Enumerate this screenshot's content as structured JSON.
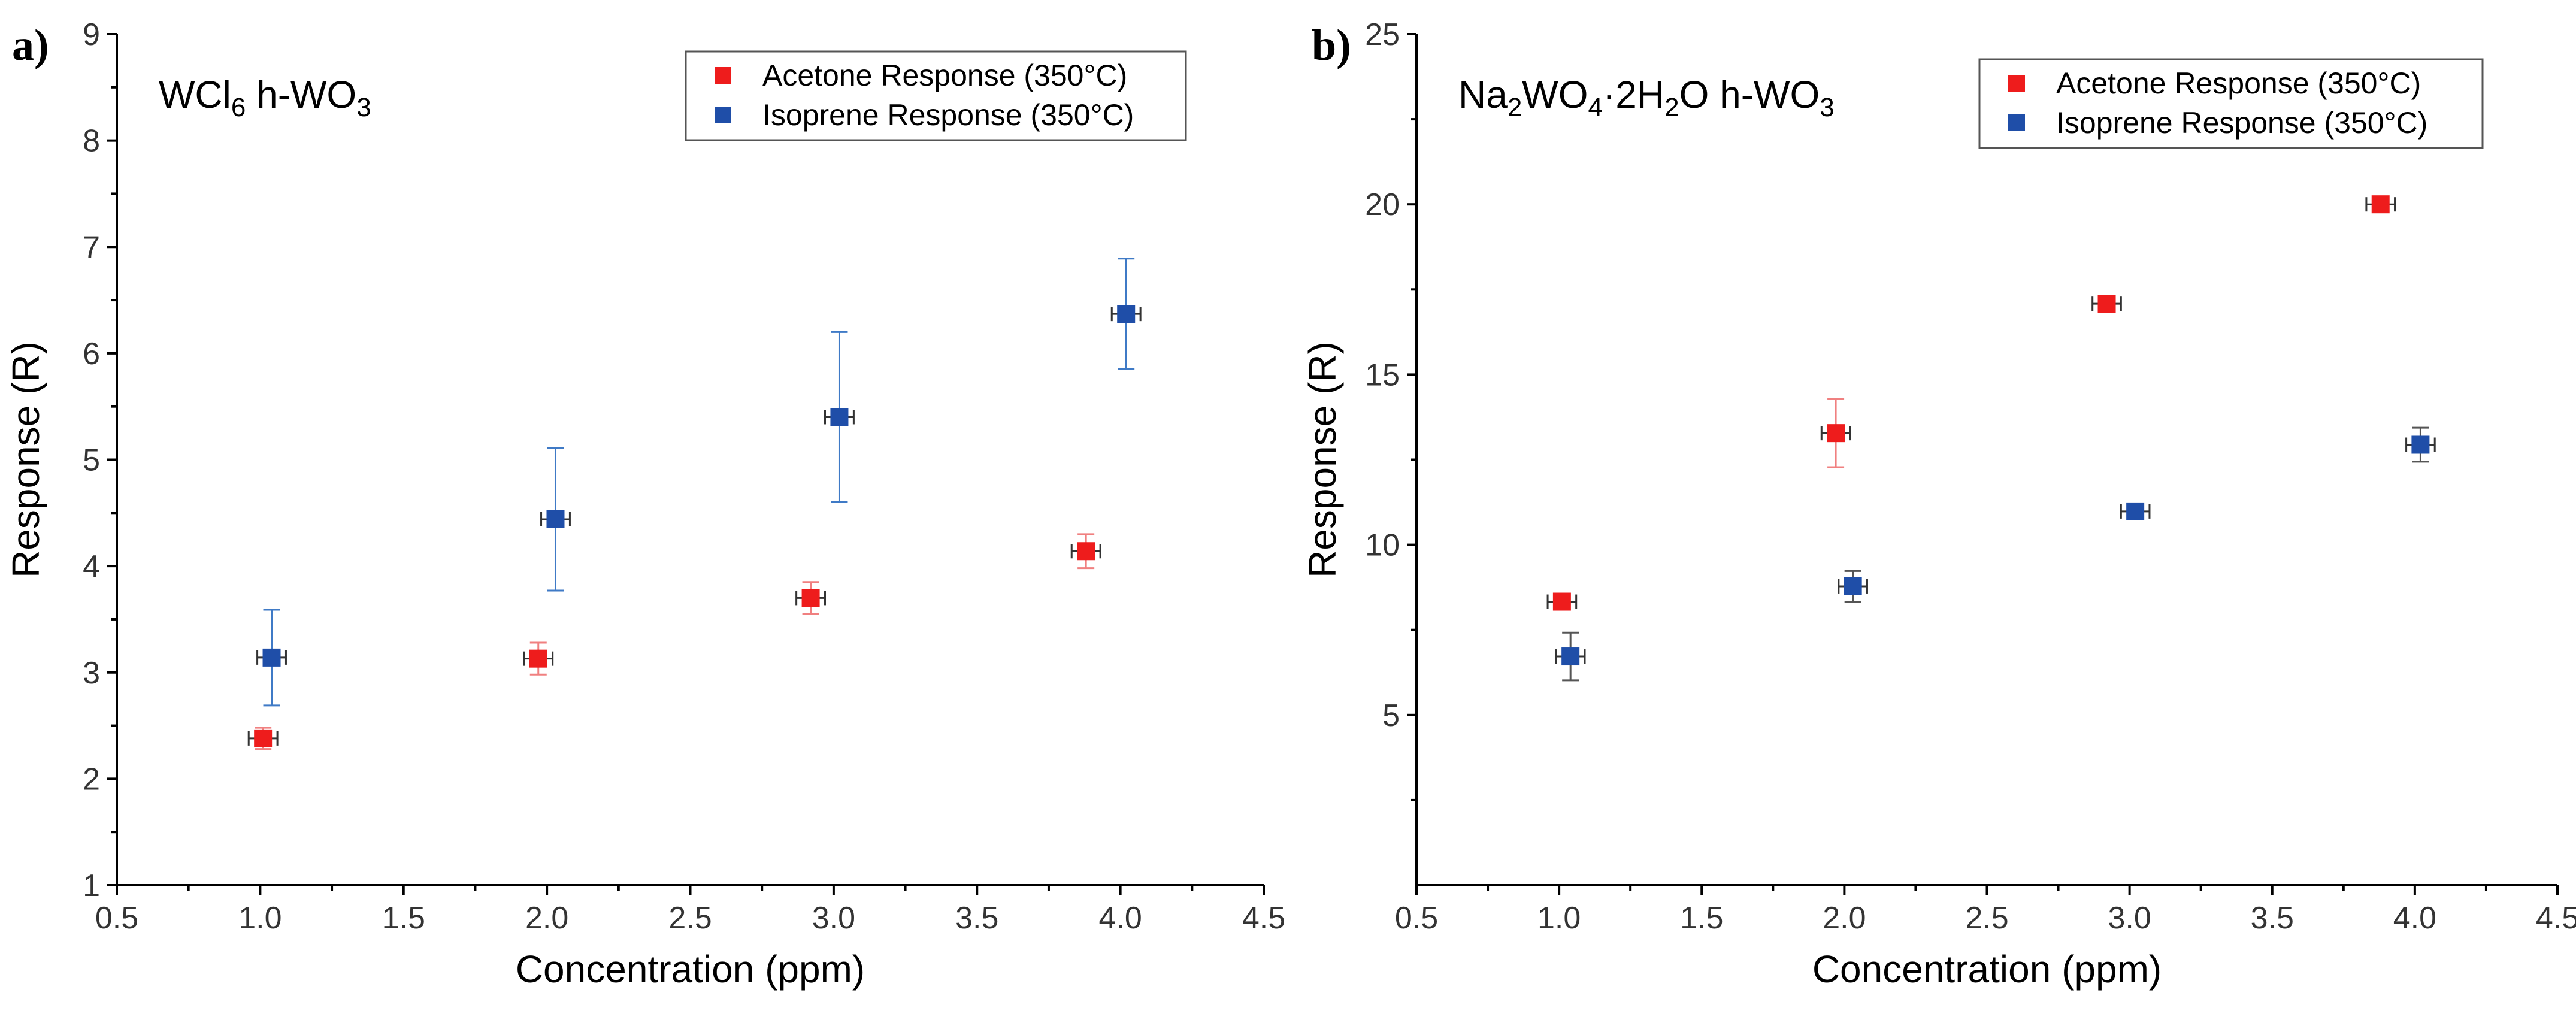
{
  "chart_data": [
    {
      "panel_label": "a)",
      "type": "scatter",
      "annotation": {
        "parts": [
          {
            "t": "WCl",
            "s": ""
          },
          {
            "t": "6",
            "s": "sub"
          },
          {
            "t": " h-WO",
            "s": ""
          },
          {
            "t": "3",
            "s": "sub"
          }
        ]
      },
      "xlabel": "Concentration (ppm)",
      "ylabel": "Response (R)",
      "xlim": [
        0.5,
        4.5
      ],
      "ylim": [
        1,
        9
      ],
      "xticks": [
        "0.5",
        "1.0",
        "1.5",
        "2.0",
        "2.5",
        "3.0",
        "3.5",
        "4.0",
        "4.5"
      ],
      "yticks": [
        "1",
        "2",
        "3",
        "4",
        "5",
        "6",
        "7",
        "8",
        "9"
      ],
      "legend_position": "top-right",
      "series": [
        {
          "name": "Acetone Response (350°C)",
          "color": "#ee1c1c",
          "errcolor": "#f08080",
          "points": [
            {
              "x": 1.01,
              "y": 2.38,
              "xerr": 0.05,
              "yerr": 0.1
            },
            {
              "x": 1.97,
              "y": 3.13,
              "xerr": 0.05,
              "yerr": 0.15
            },
            {
              "x": 2.92,
              "y": 3.7,
              "xerr": 0.05,
              "yerr": 0.15
            },
            {
              "x": 3.88,
              "y": 4.14,
              "xerr": 0.05,
              "yerr": 0.16
            }
          ]
        },
        {
          "name": "Isoprene Response (350°C)",
          "color": "#1f4ea8",
          "errcolor": "#3f7ac6",
          "points": [
            {
              "x": 1.04,
              "y": 3.14,
              "xerr": 0.05,
              "yerr": 0.45
            },
            {
              "x": 2.03,
              "y": 4.44,
              "xerr": 0.05,
              "yerr": 0.67
            },
            {
              "x": 3.02,
              "y": 5.4,
              "xerr": 0.05,
              "yerr": 0.8
            },
            {
              "x": 4.02,
              "y": 6.37,
              "xerr": 0.05,
              "yerr": 0.52
            }
          ]
        }
      ]
    },
    {
      "panel_label": "b)",
      "type": "scatter",
      "annotation": {
        "parts": [
          {
            "t": "Na",
            "s": ""
          },
          {
            "t": "2",
            "s": "sub"
          },
          {
            "t": "WO",
            "s": ""
          },
          {
            "t": "4",
            "s": "sub"
          },
          {
            "t": "·2H",
            "s": ""
          },
          {
            "t": "2",
            "s": "sub"
          },
          {
            "t": "O h-WO",
            "s": ""
          },
          {
            "t": "3",
            "s": "sub"
          }
        ]
      },
      "xlabel": "Concentration (ppm)",
      "ylabel": "Response (R)",
      "xlim": [
        0.5,
        4.5
      ],
      "ylim": [
        0,
        25
      ],
      "xticks": [
        "0.5",
        "1.0",
        "1.5",
        "2.0",
        "2.5",
        "3.0",
        "3.5",
        "4.0",
        "4.5"
      ],
      "yticks": [
        "5",
        "10",
        "15",
        "20",
        "25"
      ],
      "legend_position": "top-right",
      "series": [
        {
          "name": "Acetone Response (350°C)",
          "color": "#ee1c1c",
          "errcolor": "#f08080",
          "points": [
            {
              "x": 1.01,
              "y": 8.33,
              "xerr": 0.05,
              "yerr": 0.2
            },
            {
              "x": 1.97,
              "y": 13.28,
              "xerr": 0.05,
              "yerr": 1.0
            },
            {
              "x": 2.92,
              "y": 17.08,
              "xerr": 0.05,
              "yerr": 0.2
            },
            {
              "x": 3.88,
              "y": 20.0,
              "xerr": 0.05,
              "yerr": 0.2
            }
          ]
        },
        {
          "name": "Isoprene Response (350°C)",
          "color": "#1f4ea8",
          "errcolor": "#555555",
          "points": [
            {
              "x": 1.04,
              "y": 6.72,
              "xerr": 0.05,
              "yerr": 0.7
            },
            {
              "x": 2.03,
              "y": 8.78,
              "xerr": 0.05,
              "yerr": 0.45
            },
            {
              "x": 3.02,
              "y": 10.98,
              "xerr": 0.05,
              "yerr": 0.2
            },
            {
              "x": 4.02,
              "y": 12.94,
              "xerr": 0.05,
              "yerr": 0.5
            }
          ]
        }
      ]
    }
  ]
}
